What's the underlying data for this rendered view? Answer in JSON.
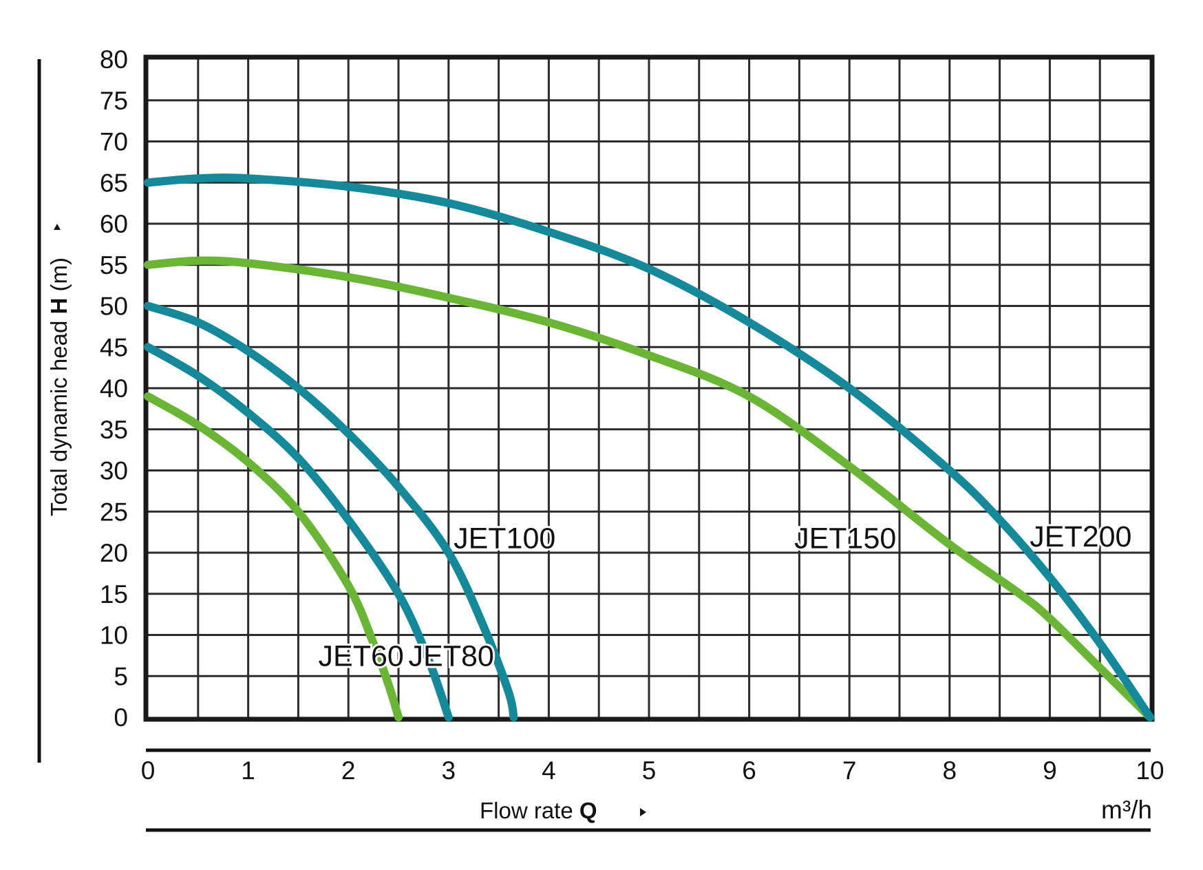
{
  "chart_data": {
    "type": "line",
    "title": "",
    "xlabel": "Flow rate",
    "xlabel_symbol": "Q",
    "x_unit": "m³/h",
    "ylabel": "Total dynamic head",
    "ylabel_symbol": "H",
    "ylabel_unit": "(m)",
    "xlim": [
      0,
      10
    ],
    "ylim": [
      0,
      80
    ],
    "x_ticks": [
      "0",
      "1",
      "2",
      "3",
      "4",
      "5",
      "6",
      "7",
      "8",
      "9",
      "10"
    ],
    "y_ticks": [
      "0",
      "5",
      "10",
      "15",
      "20",
      "25",
      "30",
      "35",
      "40",
      "45",
      "50",
      "55",
      "60",
      "65",
      "70",
      "75",
      "80"
    ],
    "grid": true,
    "x_minor_step": 0.5,
    "y_minor_step": 5,
    "series": [
      {
        "name": "JET60",
        "color": "#6ab436",
        "points": [
          [
            0,
            39
          ],
          [
            0.5,
            35.5
          ],
          [
            1,
            31
          ],
          [
            1.5,
            25
          ],
          [
            2,
            16
          ],
          [
            2.25,
            9
          ],
          [
            2.4,
            4
          ],
          [
            2.5,
            0
          ]
        ]
      },
      {
        "name": "JET80",
        "color": "#15889a",
        "points": [
          [
            0,
            45
          ],
          [
            0.5,
            41.5
          ],
          [
            1,
            37
          ],
          [
            1.5,
            31.5
          ],
          [
            2,
            24
          ],
          [
            2.5,
            15
          ],
          [
            2.8,
            7
          ],
          [
            3,
            0
          ]
        ]
      },
      {
        "name": "JET100",
        "color": "#15889a",
        "points": [
          [
            0,
            50
          ],
          [
            0.5,
            48
          ],
          [
            1,
            44.5
          ],
          [
            1.5,
            40
          ],
          [
            2,
            34.5
          ],
          [
            2.5,
            28
          ],
          [
            3,
            20
          ],
          [
            3.35,
            11
          ],
          [
            3.6,
            3
          ],
          [
            3.65,
            0
          ]
        ]
      },
      {
        "name": "JET150",
        "color": "#6ab436",
        "points": [
          [
            0,
            55
          ],
          [
            0.5,
            55.5
          ],
          [
            1,
            55.2
          ],
          [
            2,
            53.5
          ],
          [
            3,
            51
          ],
          [
            4,
            48
          ],
          [
            5,
            44
          ],
          [
            6,
            39
          ],
          [
            7,
            30.5
          ],
          [
            8,
            21
          ],
          [
            8.7,
            15
          ],
          [
            9,
            12
          ],
          [
            9.5,
            6
          ],
          [
            10,
            0
          ]
        ]
      },
      {
        "name": "JET200",
        "color": "#15889a",
        "points": [
          [
            0,
            65
          ],
          [
            0.5,
            65.5
          ],
          [
            1,
            65.5
          ],
          [
            2,
            64.5
          ],
          [
            3,
            62.5
          ],
          [
            4,
            59
          ],
          [
            5,
            54.5
          ],
          [
            6,
            48
          ],
          [
            7,
            40
          ],
          [
            8,
            30
          ],
          [
            8.5,
            24
          ],
          [
            9,
            17
          ],
          [
            9.5,
            9
          ],
          [
            10,
            0
          ]
        ]
      }
    ],
    "labels": [
      {
        "series": "JET60",
        "text": "JET60",
        "x": 1.7,
        "y": 7.5
      },
      {
        "series": "JET80",
        "text": "JET80",
        "x": 2.6,
        "y": 7.5
      },
      {
        "series": "JET100",
        "text": "JET100",
        "x": 3.05,
        "y": 21.8
      },
      {
        "series": "JET150",
        "text": "JET150",
        "x": 6.45,
        "y": 21.8
      },
      {
        "series": "JET200",
        "text": "JET200",
        "x": 8.8,
        "y": 22
      }
    ]
  }
}
